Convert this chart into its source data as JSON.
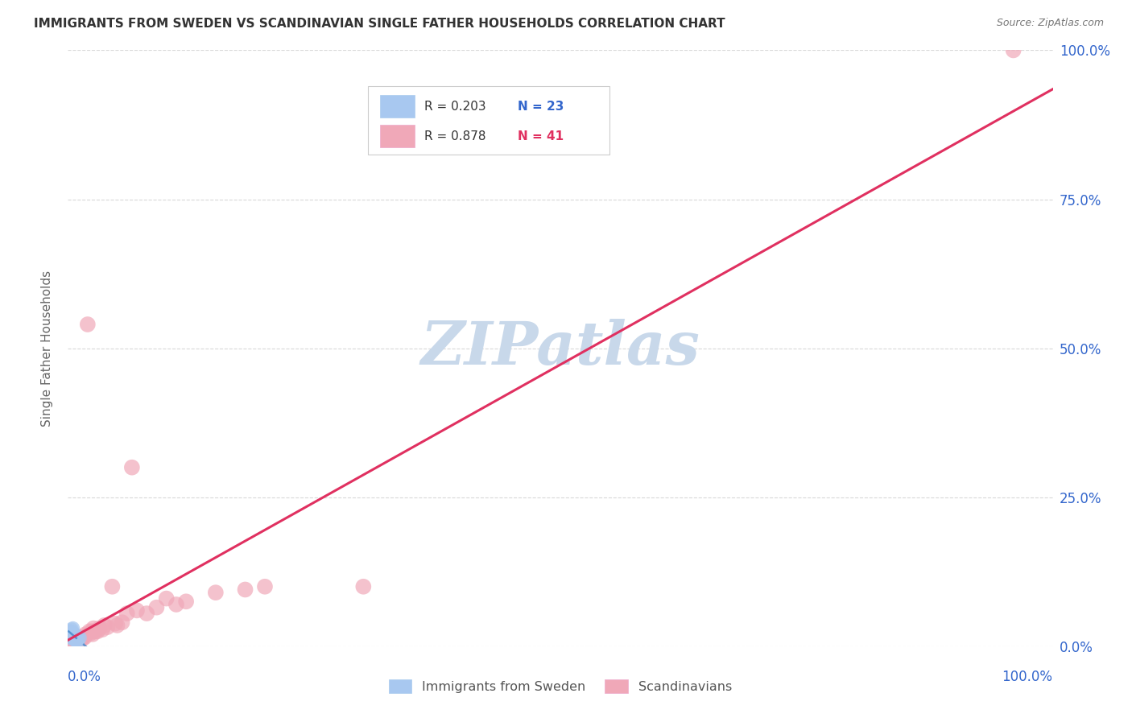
{
  "title": "IMMIGRANTS FROM SWEDEN VS SCANDINAVIAN SINGLE FATHER HOUSEHOLDS CORRELATION CHART",
  "source": "Source: ZipAtlas.com",
  "ylabel": "Single Father Households",
  "legend_blue_r": "R = 0.203",
  "legend_blue_n": "N = 23",
  "legend_pink_r": "R = 0.878",
  "legend_pink_n": "N = 41",
  "legend_label_blue": "Immigrants from Sweden",
  "legend_label_pink": "Scandinavians",
  "watermark": "ZIPatlas",
  "blue_scatter_x": [
    0.002,
    0.003,
    0.003,
    0.003,
    0.004,
    0.004,
    0.004,
    0.004,
    0.005,
    0.005,
    0.005,
    0.005,
    0.006,
    0.006,
    0.006,
    0.007,
    0.007,
    0.008,
    0.008,
    0.009,
    0.01,
    0.01,
    0.012
  ],
  "blue_scatter_y": [
    0.02,
    0.025,
    0.022,
    0.015,
    0.018,
    0.028,
    0.019,
    0.024,
    0.016,
    0.022,
    0.03,
    0.012,
    0.02,
    0.015,
    0.019,
    0.012,
    0.014,
    0.01,
    0.016,
    0.008,
    0.016,
    0.006,
    0.014
  ],
  "pink_scatter_x": [
    0.003,
    0.005,
    0.007,
    0.008,
    0.01,
    0.012,
    0.012,
    0.013,
    0.015,
    0.015,
    0.017,
    0.018,
    0.02,
    0.022,
    0.023,
    0.025,
    0.025,
    0.026,
    0.028,
    0.03,
    0.032,
    0.035,
    0.037,
    0.04,
    0.045,
    0.048,
    0.05,
    0.055,
    0.06,
    0.065,
    0.07,
    0.08,
    0.09,
    0.1,
    0.11,
    0.12,
    0.15,
    0.18,
    0.2,
    0.3,
    0.96
  ],
  "pink_scatter_y": [
    0.005,
    0.008,
    0.01,
    0.01,
    0.012,
    0.01,
    0.015,
    0.012,
    0.015,
    0.013,
    0.015,
    0.02,
    0.54,
    0.025,
    0.022,
    0.02,
    0.025,
    0.03,
    0.025,
    0.025,
    0.03,
    0.028,
    0.035,
    0.032,
    0.1,
    0.038,
    0.035,
    0.04,
    0.055,
    0.3,
    0.06,
    0.055,
    0.065,
    0.08,
    0.07,
    0.075,
    0.09,
    0.095,
    0.1,
    0.1,
    1.0
  ],
  "background_color": "#ffffff",
  "grid_color": "#d8d8d8",
  "blue_scatter_color": "#a8c8f0",
  "pink_scatter_color": "#f0a8b8",
  "blue_line_color": "#4488cc",
  "pink_line_color": "#e03060",
  "axis_color": "#3366cc",
  "title_color": "#333333",
  "watermark_color": "#c8d8ea",
  "source_color": "#777777"
}
